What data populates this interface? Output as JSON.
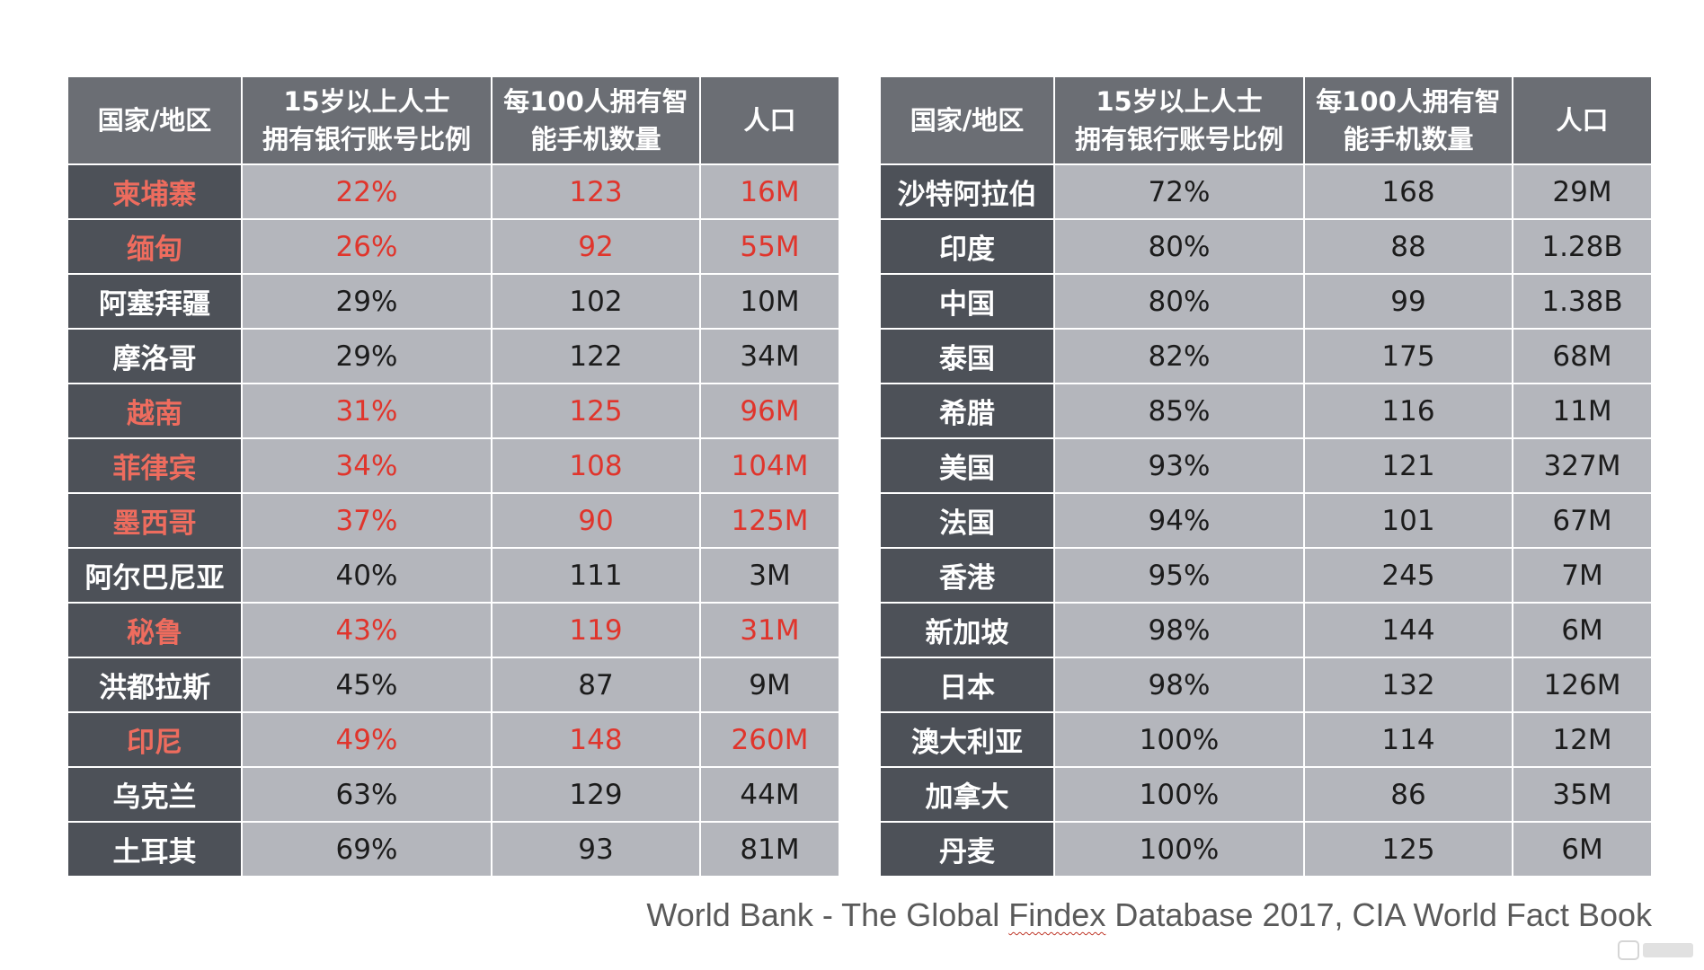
{
  "headers": {
    "country": "国家/地区",
    "bank_account": "15岁以上人士\n拥有银行账号比例",
    "smartphones": "每100人拥有智\n能手机数量",
    "population": "人口"
  },
  "left_table": [
    {
      "country": "柬埔寨",
      "bank": "22%",
      "phones": "123",
      "pop": "16M",
      "highlight": true
    },
    {
      "country": "缅甸",
      "bank": "26%",
      "phones": "92",
      "pop": "55M",
      "highlight": true
    },
    {
      "country": "阿塞拜疆",
      "bank": "29%",
      "phones": "102",
      "pop": "10M",
      "highlight": false
    },
    {
      "country": "摩洛哥",
      "bank": "29%",
      "phones": "122",
      "pop": "34M",
      "highlight": false
    },
    {
      "country": "越南",
      "bank": "31%",
      "phones": "125",
      "pop": "96M",
      "highlight": true
    },
    {
      "country": "菲律宾",
      "bank": "34%",
      "phones": "108",
      "pop": "104M",
      "highlight": true
    },
    {
      "country": "墨西哥",
      "bank": "37%",
      "phones": "90",
      "pop": "125M",
      "highlight": true
    },
    {
      "country": "阿尔巴尼亚",
      "bank": "40%",
      "phones": "111",
      "pop": "3M",
      "highlight": false
    },
    {
      "country": "秘鲁",
      "bank": "43%",
      "phones": "119",
      "pop": "31M",
      "highlight": true
    },
    {
      "country": "洪都拉斯",
      "bank": "45%",
      "phones": "87",
      "pop": "9M",
      "highlight": false
    },
    {
      "country": "印尼",
      "bank": "49%",
      "phones": "148",
      "pop": "260M",
      "highlight": true
    },
    {
      "country": "乌克兰",
      "bank": "63%",
      "phones": "129",
      "pop": "44M",
      "highlight": false
    },
    {
      "country": "土耳其",
      "bank": "69%",
      "phones": "93",
      "pop": "81M",
      "highlight": false
    }
  ],
  "right_table": [
    {
      "country": "沙特阿拉伯",
      "bank": "72%",
      "phones": "168",
      "pop": "29M",
      "highlight": false
    },
    {
      "country": "印度",
      "bank": "80%",
      "phones": "88",
      "pop": "1.28B",
      "highlight": false
    },
    {
      "country": "中国",
      "bank": "80%",
      "phones": "99",
      "pop": "1.38B",
      "highlight": false
    },
    {
      "country": "泰国",
      "bank": "82%",
      "phones": "175",
      "pop": "68M",
      "highlight": false
    },
    {
      "country": "希腊",
      "bank": "85%",
      "phones": "116",
      "pop": "11M",
      "highlight": false
    },
    {
      "country": "美国",
      "bank": "93%",
      "phones": "121",
      "pop": "327M",
      "highlight": false
    },
    {
      "country": "法国",
      "bank": "94%",
      "phones": "101",
      "pop": "67M",
      "highlight": false
    },
    {
      "country": "香港",
      "bank": "95%",
      "phones": "245",
      "pop": "7M",
      "highlight": false
    },
    {
      "country": "新加坡",
      "bank": "98%",
      "phones": "144",
      "pop": "6M",
      "highlight": false
    },
    {
      "country": "日本",
      "bank": "98%",
      "phones": "132",
      "pop": "126M",
      "highlight": false
    },
    {
      "country": "澳大利亚",
      "bank": "100%",
      "phones": "114",
      "pop": "12M",
      "highlight": false
    },
    {
      "country": "加拿大",
      "bank": "100%",
      "phones": "86",
      "pop": "35M",
      "highlight": false
    },
    {
      "country": "丹麦",
      "bank": "100%",
      "phones": "125",
      "pop": "6M",
      "highlight": false
    }
  ],
  "source": {
    "prefix": "World Bank - The Global ",
    "findex": "Findex",
    "suffix": " Database 2017, CIA World Fact Book"
  },
  "colors": {
    "header_bg": "#6b6e74",
    "country_bg": "#4d5158",
    "value_bg": "#b4b6bc",
    "highlight_red": "#e0352c"
  }
}
